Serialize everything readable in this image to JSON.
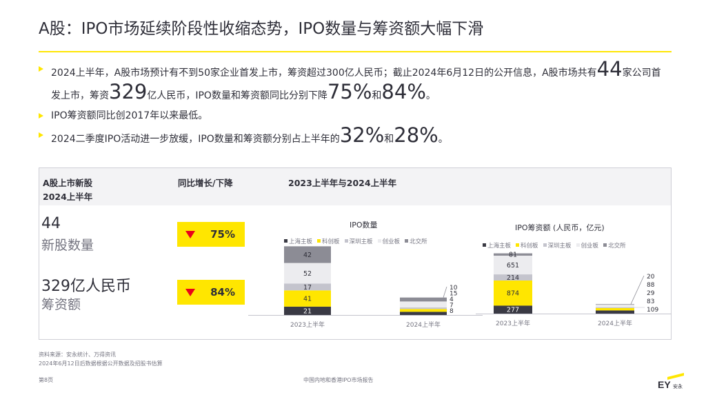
{
  "title": "A股：IPO市场延续阶段性收缩态势，IPO数量与筹资额大幅下滑",
  "bullets": {
    "b1_part1": "2024上半年，A股市场预计有不到50家企业首发上市，筹资超过300亿人民币；截止2024年6月12日的公开信息，A股市场共有",
    "b1_n1": "44",
    "b1_part2": "家公司首发上市，筹资",
    "b1_n2": "329",
    "b1_part3": "亿人民币，IPO数量和筹资额同比分别下降",
    "b1_n3": "75%",
    "b1_part4": "和",
    "b1_n4": "84%",
    "b1_part5": "。",
    "b2": "IPO筹资额同比创2017年以来最低。",
    "b3_part1": "2024二季度IPO活动进一步放缓，IPO数量和筹资额分别占上半年的",
    "b3_n1": "32%",
    "b3_part2": "和",
    "b3_n2": "28%",
    "b3_part3": "。"
  },
  "panel": {
    "col1_line1": "A股上市新股",
    "col1_line2": "2024上半年",
    "col2": "同比增长/下降",
    "col3": "2023上半年与2024上半年",
    "kpi1_value": "44",
    "kpi1_label": "新股数量",
    "kpi1_change": "75%",
    "kpi2_value": "329亿人民币",
    "kpi2_label": "筹资额",
    "kpi2_change": "84%",
    "arrow_color": "#ea011a"
  },
  "legend_items": [
    "上海主板",
    "科创板",
    "深圳主板",
    "创业板",
    "北交所"
  ],
  "chart_data": [
    {
      "type": "bar",
      "stacked": true,
      "title": "IPO数量",
      "categories": [
        "2023上半年",
        "2024上半年"
      ],
      "series": [
        {
          "name": "上海主板",
          "color": "#3a3a44",
          "values": [
            21,
            8
          ]
        },
        {
          "name": "科创板",
          "color": "#ffe600",
          "values": [
            41,
            7
          ]
        },
        {
          "name": "深圳主板",
          "color": "#c4c4cd",
          "values": [
            17,
            4
          ]
        },
        {
          "name": "创业板",
          "color": "#ececef",
          "values": [
            52,
            15
          ]
        },
        {
          "name": "北交所",
          "color": "#8c8c95",
          "values": [
            42,
            10
          ]
        }
      ]
    },
    {
      "type": "bar",
      "stacked": true,
      "title": "IPO筹资额 (人民币，亿元)",
      "categories": [
        "2023上半年",
        "2024上半年"
      ],
      "series": [
        {
          "name": "上海主板",
          "color": "#3a3a44",
          "values": [
            277,
            109
          ]
        },
        {
          "name": "科创板",
          "color": "#ffe600",
          "values": [
            874,
            83
          ]
        },
        {
          "name": "深圳主板",
          "color": "#c4c4cd",
          "values": [
            214,
            29
          ]
        },
        {
          "name": "创业板",
          "color": "#ececef",
          "values": [
            651,
            88
          ]
        },
        {
          "name": "北交所",
          "color": "#8c8c95",
          "values": [
            81,
            20
          ]
        }
      ]
    }
  ],
  "footer": {
    "source": "资料来源：安永统计、万得资讯",
    "note": "2024年6月12日后数据根据公开数据及招股书估算",
    "page": "第8页",
    "report": "中国内地和香港IPO市场报告",
    "logo_text": "EY",
    "logo_sub": "安永"
  }
}
